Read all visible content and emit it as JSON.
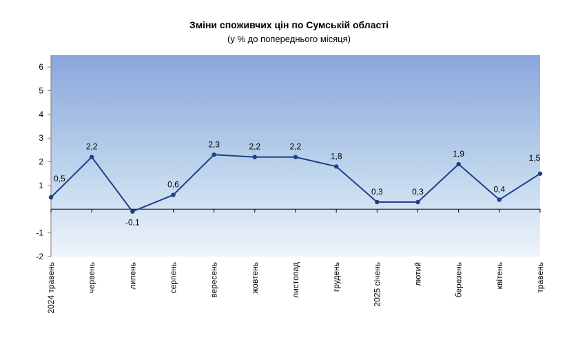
{
  "chart_data": {
    "type": "line",
    "title": "Зміни споживчих цін по Сумській області",
    "subtitle": "(у % до попереднього місяця)",
    "categories": [
      "2024 травень",
      "червень",
      "липень",
      "серпень",
      "вересень",
      "жовтень",
      "листопад",
      "грудень",
      "2025 січень",
      "лютий",
      "березень",
      "квітень",
      "травень"
    ],
    "values": [
      0.5,
      2.2,
      -0.1,
      0.6,
      2.3,
      2.2,
      2.2,
      1.8,
      0.3,
      0.3,
      1.9,
      0.4,
      1.5
    ],
    "value_labels": [
      "0,5",
      "2,2",
      "-0,1",
      "0,6",
      "2,3",
      "2,2",
      "2,2",
      "1,8",
      "0,3",
      "0,3",
      "1,9",
      "0,4",
      "1,5"
    ],
    "y_tick_labels": [
      "-2",
      "-1",
      "1",
      "2",
      "3",
      "4",
      "5",
      "6"
    ],
    "grid": false,
    "legend": "none",
    "colors": {
      "line": "#1f3f8c",
      "gradient_top": "#8aa6dc",
      "gradient_mid": "#bcd3ec",
      "gradient_bottom": "#eef4fa"
    }
  }
}
